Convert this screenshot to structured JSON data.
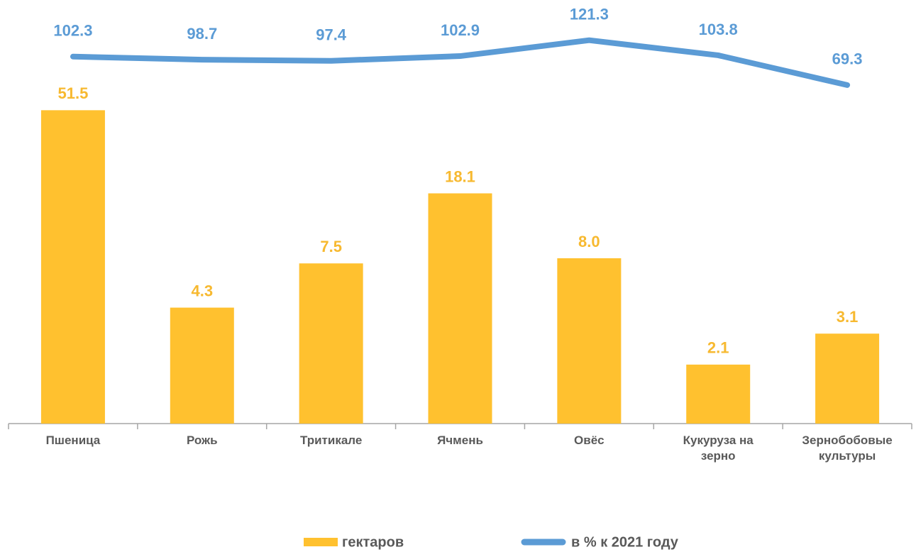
{
  "chart_data": {
    "type": "bar",
    "categories": [
      "Пшеница",
      "Рожь",
      "Тритикале",
      "Ячмень",
      "Овёс",
      "Кукуруза на зерно",
      "Зернобобовые культуры"
    ],
    "series": [
      {
        "name": "гектаров",
        "type": "bar",
        "color": "#FFC12F",
        "label_color": "#F7B930",
        "values": [
          51.5,
          4.3,
          7.5,
          18.1,
          8.0,
          2.1,
          3.1
        ],
        "value_labels": [
          "51.5",
          "4.3",
          "7.5",
          "18.1",
          "8.0",
          "2.1",
          "3.1"
        ]
      },
      {
        "name": "в % к 2021 году",
        "type": "line",
        "axis": "y2",
        "color": "#5B9BD5",
        "values": [
          102.3,
          98.7,
          97.4,
          102.9,
          121.3,
          103.8,
          69.3
        ],
        "value_labels": [
          "102.3",
          "98.7",
          "97.4",
          "102.9",
          "121.3",
          "103.8",
          "69.3"
        ]
      }
    ],
    "ylim": [
      1,
      100
    ],
    "y_scale": "log",
    "y2lim": [
      0,
      140
    ],
    "legend": "bottom"
  }
}
